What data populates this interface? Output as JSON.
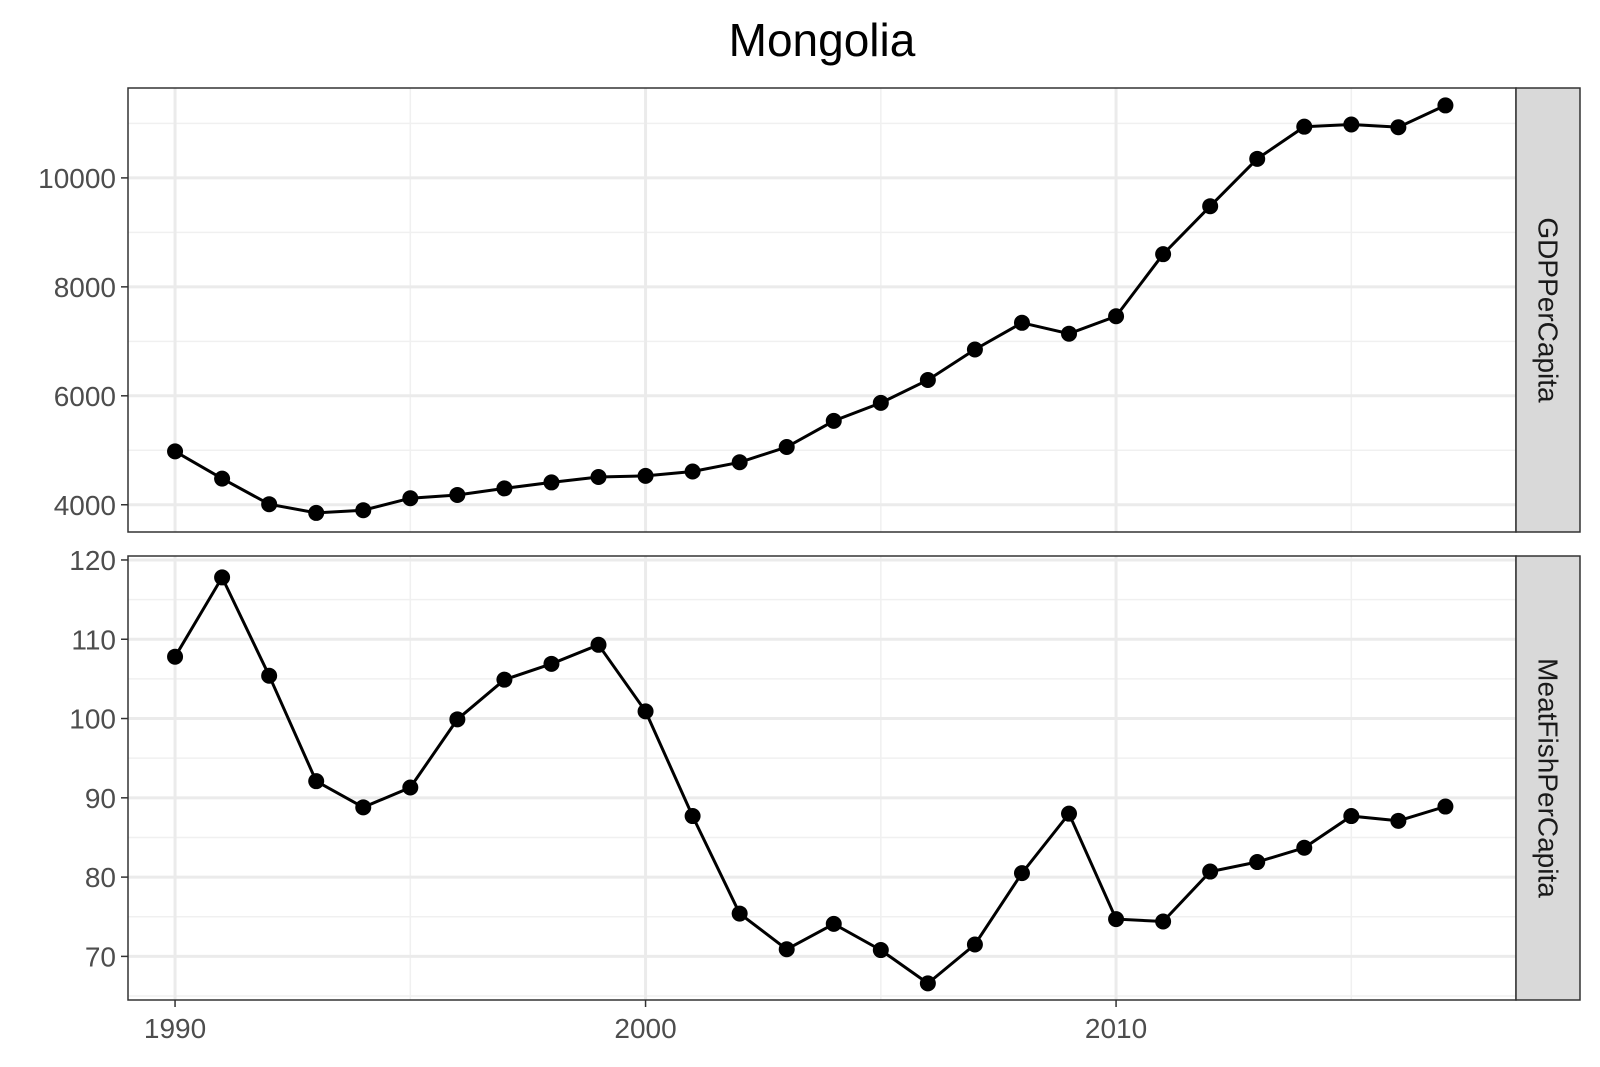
{
  "chart_data": {
    "type": "line",
    "title": "Mongolia",
    "xlabel": "",
    "ylabel": "",
    "x": [
      1990,
      1991,
      1992,
      1993,
      1994,
      1995,
      1996,
      1997,
      1998,
      1999,
      2000,
      2001,
      2002,
      2003,
      2004,
      2005,
      2006,
      2007,
      2008,
      2009,
      2010,
      2011,
      2012,
      2013,
      2014,
      2015,
      2016,
      2017
    ],
    "xlim": [
      1989,
      2018.5
    ],
    "x_ticks": [
      1990,
      2000,
      2010
    ],
    "grid": true,
    "point_color": "#000000",
    "line_color": "#000000",
    "panels": [
      {
        "strip_label": "GDPPerCapita",
        "ylim": [
          3500,
          11650
        ],
        "y_ticks": [
          4000,
          6000,
          8000,
          10000
        ],
        "values": [
          4980,
          4480,
          4010,
          3850,
          3900,
          4120,
          4180,
          4300,
          4410,
          4510,
          4530,
          4610,
          4780,
          5060,
          5540,
          5870,
          6290,
          6850,
          7340,
          7140,
          7460,
          8600,
          9480,
          10350,
          10940,
          10980,
          10930,
          11330
        ]
      },
      {
        "strip_label": "MeatFishPerCapita",
        "ylim": [
          64.5,
          120.5
        ],
        "y_ticks": [
          70,
          80,
          90,
          100,
          110,
          120
        ],
        "values": [
          107.8,
          117.8,
          105.4,
          92.1,
          88.8,
          91.3,
          99.9,
          104.9,
          106.9,
          109.3,
          100.9,
          87.7,
          75.4,
          70.9,
          74.1,
          70.8,
          66.6,
          71.5,
          80.5,
          88.0,
          74.7,
          74.4,
          80.7,
          81.9,
          83.7,
          87.7,
          87.1,
          88.9
        ]
      }
    ]
  }
}
